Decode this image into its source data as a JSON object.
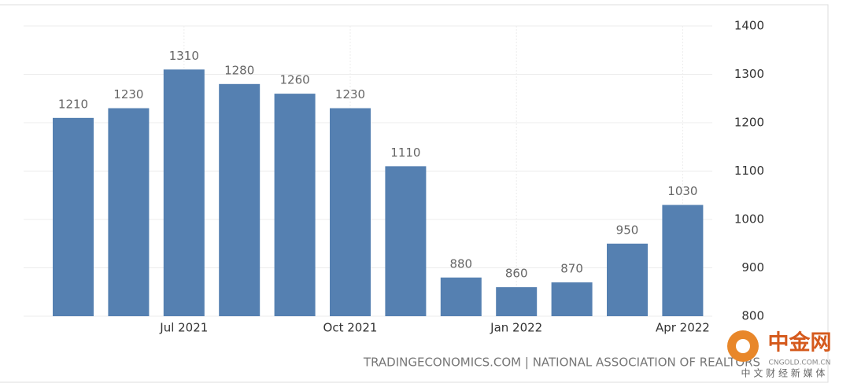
{
  "chart_data": {
    "type": "bar",
    "categories": [
      null,
      null,
      "Jul 2021",
      null,
      null,
      "Oct 2021",
      null,
      null,
      "Jan 2022",
      null,
      null,
      "Apr 2022"
    ],
    "values": [
      1210,
      1230,
      1310,
      1280,
      1260,
      1230,
      1110,
      880,
      860,
      870,
      950,
      1030
    ],
    "color": "#5580b1",
    "ylim": [
      800,
      1400
    ],
    "yticks": [
      800,
      900,
      1000,
      1100,
      1200,
      1300,
      1400
    ],
    "grid": true,
    "y_axis_side": "right",
    "source": "TRADINGECONOMICS.COM | NATIONAL ASSOCIATION OF REALTORS"
  },
  "watermark": {
    "name": "中金网",
    "url": "CNGOLD.COM.CN",
    "tagline": "中 文 财 经 新 媒 体"
  }
}
